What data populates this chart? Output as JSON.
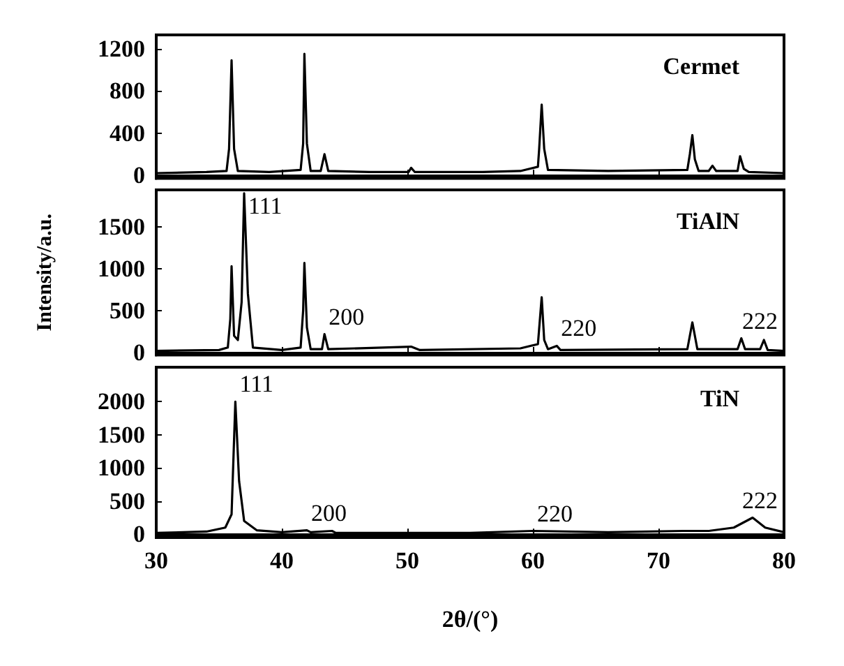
{
  "chart_data": [
    {
      "type": "line",
      "xlim": [
        30,
        80
      ],
      "xticks": [
        30,
        40,
        50,
        60,
        70,
        80
      ],
      "ylim": [
        -30,
        1330
      ],
      "yticks": [
        0,
        400,
        800,
        1200
      ],
      "grid": false,
      "tick_labels": "y",
      "series": [
        {
          "name": "Cermet",
          "color": "#000000",
          "x": [
            30,
            34,
            35.6,
            35.8,
            36.0,
            36.2,
            36.5,
            39,
            41.5,
            41.7,
            41.8,
            42.0,
            42.3,
            43.1,
            43.4,
            43.7,
            47,
            50.1,
            50.3,
            50.6,
            56,
            59,
            60.4,
            60.5,
            60.7,
            60.9,
            61.2,
            66,
            72.3,
            72.5,
            72.7,
            72.9,
            73.2,
            74,
            74.3,
            74.6,
            76.3,
            76.5,
            76.8,
            77.2,
            80
          ],
          "values": [
            20,
            30,
            40,
            250,
            1090,
            250,
            40,
            30,
            50,
            300,
            1150,
            300,
            40,
            40,
            200,
            40,
            30,
            30,
            70,
            30,
            30,
            40,
            80,
            250,
            670,
            250,
            50,
            40,
            50,
            200,
            380,
            150,
            40,
            40,
            90,
            40,
            40,
            180,
            60,
            30,
            20
          ]
        }
      ]
    },
    {
      "type": "line",
      "xlim": [
        30,
        80
      ],
      "xticks": [
        30,
        40,
        50,
        60,
        70,
        80
      ],
      "ylim": [
        -30,
        1940
      ],
      "yticks": [
        0,
        500,
        1000,
        1500
      ],
      "grid": false,
      "tick_labels": "y",
      "ylabel": "Intensity/a.u.",
      "series": [
        {
          "name": "TiAlN",
          "color": "#000000",
          "x": [
            30,
            35,
            35.7,
            35.9,
            36.0,
            36.2,
            36.5,
            36.8,
            37.0,
            37.3,
            37.7,
            40,
            41.5,
            41.7,
            41.8,
            42.0,
            42.3,
            43.2,
            43.4,
            43.7,
            50.3,
            51,
            59,
            60.4,
            60.7,
            60.9,
            61.2,
            61.9,
            62.2,
            72.3,
            72.7,
            73.1,
            76.3,
            76.6,
            76.9,
            78.1,
            78.4,
            78.7,
            80
          ],
          "values": [
            20,
            30,
            60,
            400,
            1030,
            200,
            150,
            600,
            1900,
            700,
            60,
            30,
            60,
            500,
            1070,
            300,
            40,
            40,
            220,
            40,
            70,
            30,
            50,
            100,
            660,
            150,
            40,
            80,
            30,
            40,
            360,
            40,
            40,
            170,
            40,
            40,
            150,
            30,
            20
          ]
        }
      ],
      "annotations": [
        {
          "text": "111",
          "x": 37.0,
          "y": 1900
        },
        {
          "text": "200",
          "x": 43.4,
          "y": 220
        },
        {
          "text": "220",
          "x": 61.9,
          "y": 80
        },
        {
          "text": "222",
          "x": 76.6,
          "y": 170
        }
      ]
    },
    {
      "type": "line",
      "xlim": [
        30,
        80
      ],
      "xticks": [
        30,
        40,
        50,
        60,
        70,
        80
      ],
      "ylim": [
        -50,
        2520
      ],
      "yticks": [
        0,
        500,
        1000,
        1500,
        2000
      ],
      "grid": false,
      "xlabel": "2θ/(°)",
      "series": [
        {
          "name": "TiN",
          "color": "#000000",
          "x": [
            30,
            34,
            35.5,
            36.0,
            36.3,
            36.6,
            37.0,
            38,
            40,
            42,
            42.3,
            44,
            44.3,
            55,
            60,
            66,
            72,
            74,
            76,
            77.5,
            78.5,
            80
          ],
          "values": [
            20,
            40,
            100,
            300,
            2000,
            800,
            200,
            60,
            30,
            60,
            30,
            50,
            20,
            20,
            50,
            30,
            50,
            50,
            100,
            250,
            100,
            30
          ]
        }
      ],
      "annotations": [
        {
          "text": "111",
          "x": 36.3,
          "y": 2000
        },
        {
          "text": "200",
          "x": 42,
          "y": 60
        },
        {
          "text": "220",
          "x": 60,
          "y": 50
        },
        {
          "text": "222",
          "x": 77.5,
          "y": 250
        }
      ]
    }
  ]
}
